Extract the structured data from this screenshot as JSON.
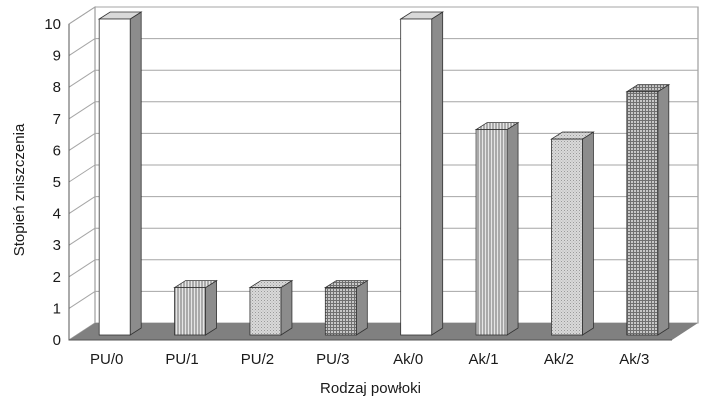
{
  "chart_data": {
    "type": "bar",
    "title": "",
    "xlabel": "Rodzaj powłoki",
    "ylabel": "Stopień zniszczenia",
    "categories": [
      "PU/0",
      "PU/1",
      "PU/2",
      "PU/3",
      "Ak/0",
      "Ak/1",
      "Ak/2",
      "Ak/3"
    ],
    "values": [
      10,
      1.5,
      1.5,
      1.5,
      10,
      6.5,
      6.2,
      7.7
    ],
    "patterns": [
      "white",
      "vertical-stripes",
      "dots",
      "grid",
      "white",
      "vertical-stripes",
      "dots",
      "grid"
    ],
    "ylim": [
      0,
      10
    ],
    "yticks": [
      "0",
      "1",
      "2",
      "3",
      "4",
      "5",
      "6",
      "7",
      "8",
      "9",
      "10"
    ],
    "grid": true,
    "three_d": true,
    "colors": {
      "bar_front": "#ffffff",
      "bar_side": "#8c8c8c",
      "bar_top": "#d9d9d9",
      "floor": "#808080",
      "gridline": "#a6a6a6",
      "wall_border": "#888888"
    }
  }
}
